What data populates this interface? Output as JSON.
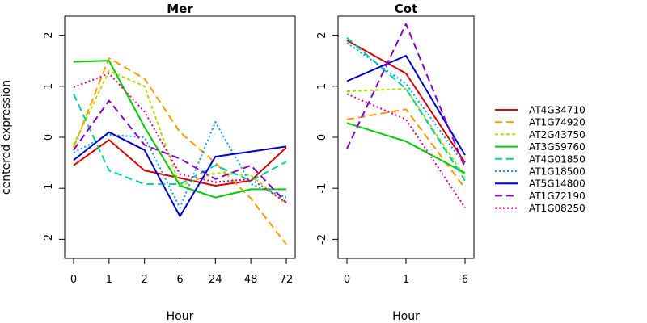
{
  "chart_data": [
    {
      "type": "line",
      "title": "Mer",
      "xlabel": "Hour",
      "ylabel": "centered expression",
      "categories": [
        "0",
        "1",
        "2",
        "6",
        "24",
        "48",
        "72"
      ],
      "ylim": [
        -2.2,
        2.2
      ],
      "yticks": [
        -2,
        -1,
        0,
        1,
        2
      ],
      "grid": false,
      "series": [
        {
          "name": "AT4G34710",
          "color": "#dd0000",
          "dash": "solid",
          "values": [
            -0.55,
            -0.05,
            -0.65,
            -0.8,
            -0.95,
            -0.85,
            -0.2
          ]
        },
        {
          "name": "AT1G74920",
          "color": "#ff9900",
          "dash": "long",
          "values": [
            -0.2,
            1.55,
            1.15,
            0.1,
            -0.5,
            -1.2,
            -2.1
          ]
        },
        {
          "name": "AT2G43750",
          "color": "#aadd00",
          "dash": "short",
          "values": [
            -0.15,
            1.3,
            1.0,
            -0.95,
            -0.7,
            -0.75,
            -1.3
          ]
        },
        {
          "name": "AT3G59760",
          "color": "#00cc00",
          "dash": "solid",
          "values": [
            1.48,
            1.5,
            0.2,
            -0.95,
            -1.18,
            -1.02,
            -1.02
          ]
        },
        {
          "name": "AT4G01850",
          "color": "#00ccaa",
          "dash": "long",
          "values": [
            0.85,
            -0.65,
            -0.92,
            -0.92,
            -0.55,
            -0.85,
            -0.48
          ]
        },
        {
          "name": "AT1G18500",
          "color": "#0099ff",
          "dash": "dot",
          "values": [
            -0.3,
            0.05,
            0.0,
            -1.38,
            0.3,
            -0.92,
            -1.18
          ]
        },
        {
          "name": "AT5G14800",
          "color": "#0000cc",
          "dash": "solid",
          "values": [
            -0.45,
            0.1,
            -0.25,
            -1.55,
            -0.38,
            -0.28,
            -0.18
          ]
        },
        {
          "name": "AT1G72190",
          "color": "#8800cc",
          "dash": "long",
          "values": [
            -0.25,
            0.72,
            -0.15,
            -0.42,
            -0.82,
            -0.55,
            -1.28
          ]
        },
        {
          "name": "AT1G08250",
          "color": "#dd0088",
          "dash": "dot",
          "values": [
            0.98,
            1.25,
            0.5,
            -0.72,
            -0.88,
            -0.82,
            -1.28
          ]
        }
      ]
    },
    {
      "type": "line",
      "title": "Cot",
      "xlabel": "Hour",
      "ylabel": "",
      "categories": [
        "0",
        "1",
        "6"
      ],
      "ylim": [
        -2.2,
        2.2
      ],
      "yticks": [
        -2,
        -1,
        0,
        1,
        2
      ],
      "grid": false,
      "legend_position": "right",
      "series": [
        {
          "name": "AT4G34710",
          "color": "#dd0000",
          "dash": "solid",
          "values": [
            1.9,
            1.25,
            -0.5
          ]
        },
        {
          "name": "AT1G74920",
          "color": "#ff9900",
          "dash": "long",
          "values": [
            0.35,
            0.55,
            -1.0
          ]
        },
        {
          "name": "AT2G43750",
          "color": "#aadd00",
          "dash": "short",
          "values": [
            0.9,
            0.95,
            -0.78
          ]
        },
        {
          "name": "AT3G59760",
          "color": "#00cc00",
          "dash": "solid",
          "values": [
            0.28,
            -0.08,
            -0.7
          ]
        },
        {
          "name": "AT4G01850",
          "color": "#00ccaa",
          "dash": "long",
          "values": [
            1.95,
            0.95,
            -0.85
          ]
        },
        {
          "name": "AT1G18500",
          "color": "#0099ff",
          "dash": "dot",
          "values": [
            1.85,
            1.05,
            -0.55
          ]
        },
        {
          "name": "AT5G14800",
          "color": "#0000cc",
          "dash": "solid",
          "values": [
            1.1,
            1.6,
            -0.35
          ]
        },
        {
          "name": "AT1G72190",
          "color": "#8800cc",
          "dash": "long",
          "values": [
            -0.22,
            2.22,
            -0.6
          ]
        },
        {
          "name": "AT1G08250",
          "color": "#dd0088",
          "dash": "dot",
          "values": [
            0.85,
            0.35,
            -1.38
          ]
        }
      ]
    }
  ]
}
